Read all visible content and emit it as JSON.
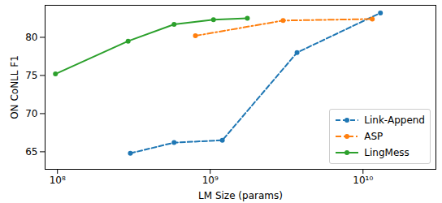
{
  "chart_data": {
    "type": "line",
    "x_label": "LM Size (params)",
    "y_label": "ON CoNLL F1",
    "log": "x",
    "grid": false,
    "legend": "lower right",
    "xlim": [
      83000000,
      30000000000
    ],
    "xticks": [
      {
        "value": 100000000,
        "label": "10⁸"
      },
      {
        "value": 1000000000,
        "label": "10⁹"
      },
      {
        "value": 10000000000,
        "label": "10¹⁰"
      }
    ],
    "ylim": [
      62.7,
      84.2
    ],
    "yticks": [
      65,
      70,
      75,
      80
    ],
    "series": [
      {
        "name": "Link-Append",
        "color": "#1f77b4",
        "line_style": "dashed",
        "marker": "circle",
        "x": [
          300000000,
          580000000,
          1200000000,
          3700000000,
          13000000000
        ],
        "values": [
          64.8,
          66.2,
          66.5,
          78.0,
          83.2
        ]
      },
      {
        "name": "ASP",
        "color": "#ff7f0e",
        "line_style": "dashdot",
        "marker": "circle",
        "x": [
          800000000,
          3000000000,
          11500000000
        ],
        "values": [
          80.2,
          82.2,
          82.4
        ]
      },
      {
        "name": "LingMess",
        "color": "#2ca02c",
        "line_style": "solid",
        "marker": "circle",
        "x": [
          97000000,
          290000000,
          580000000,
          1050000000,
          1750000000
        ],
        "values": [
          75.2,
          79.5,
          81.7,
          82.3,
          82.5
        ]
      }
    ]
  }
}
